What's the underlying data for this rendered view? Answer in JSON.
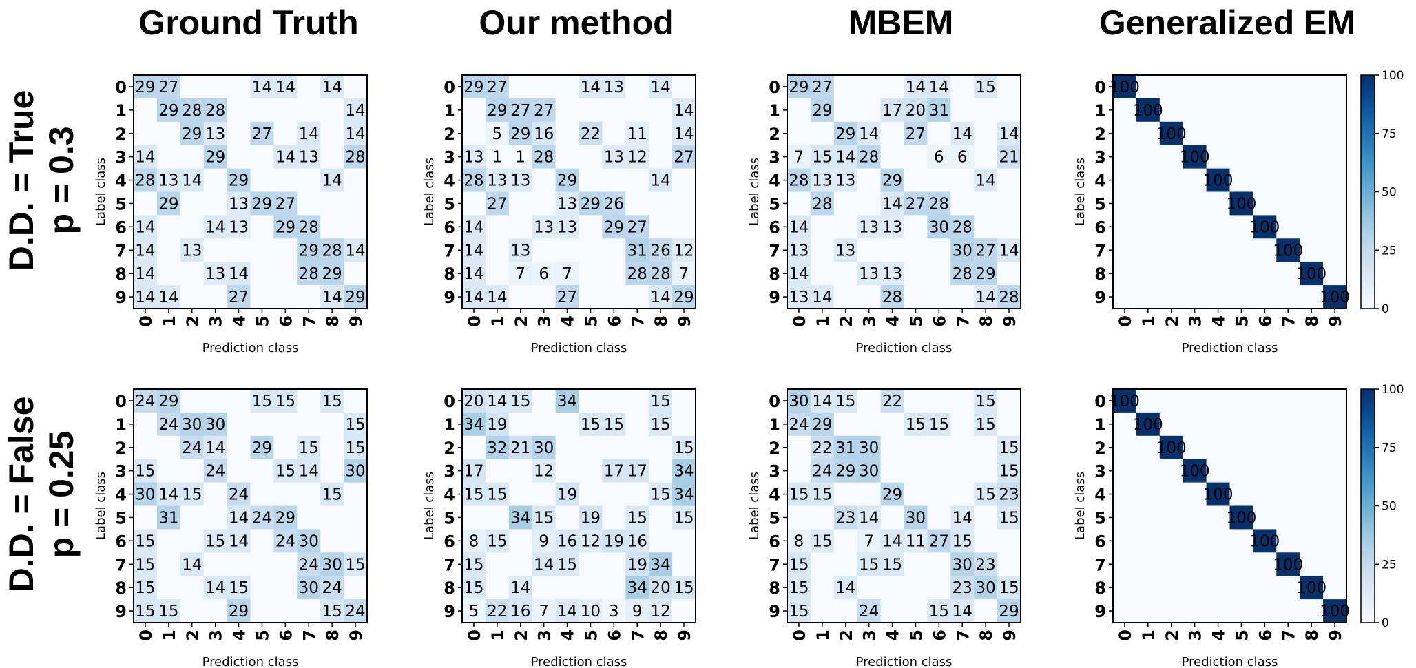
{
  "col_titles": [
    "Ground Truth",
    "Our method",
    "MBEM",
    "Generalized EM"
  ],
  "row_titles": [
    [
      "D.D. = True",
      "p = 0.3"
    ],
    [
      "D.D. = False",
      "p = 0.25"
    ]
  ],
  "colorbar": {
    "ticks": [
      0,
      25,
      50,
      75,
      100
    ],
    "range": [
      0,
      100
    ],
    "colormap": "Blues"
  },
  "chart_data": [
    {
      "type": "heatmap",
      "row": 0,
      "col": 0,
      "title": "",
      "xlabel": "Prediction class",
      "ylabel": "Label class",
      "x": [
        "0",
        "1",
        "2",
        "3",
        "4",
        "5",
        "6",
        "7",
        "8",
        "9"
      ],
      "y": [
        "0",
        "1",
        "2",
        "3",
        "4",
        "5",
        "6",
        "7",
        "8",
        "9"
      ],
      "values": [
        [
          29,
          27,
          0,
          0,
          0,
          14,
          14,
          0,
          14,
          0
        ],
        [
          0,
          29,
          28,
          28,
          0,
          0,
          0,
          0,
          0,
          14
        ],
        [
          0,
          0,
          29,
          13,
          0,
          27,
          0,
          14,
          0,
          14
        ],
        [
          14,
          0,
          0,
          29,
          0,
          0,
          14,
          13,
          0,
          28
        ],
        [
          28,
          13,
          14,
          0,
          29,
          0,
          0,
          0,
          14,
          0
        ],
        [
          0,
          29,
          0,
          0,
          13,
          29,
          27,
          0,
          0,
          0
        ],
        [
          14,
          0,
          0,
          14,
          13,
          0,
          29,
          28,
          0,
          0
        ],
        [
          14,
          0,
          13,
          0,
          0,
          0,
          0,
          29,
          28,
          14
        ],
        [
          14,
          0,
          0,
          13,
          14,
          0,
          0,
          28,
          29,
          0
        ],
        [
          14,
          14,
          0,
          0,
          27,
          0,
          0,
          0,
          14,
          29
        ]
      ]
    },
    {
      "type": "heatmap",
      "row": 0,
      "col": 1,
      "title": "",
      "xlabel": "Prediction class",
      "ylabel": "Label class",
      "x": [
        "0",
        "1",
        "2",
        "3",
        "4",
        "5",
        "6",
        "7",
        "8",
        "9"
      ],
      "y": [
        "0",
        "1",
        "2",
        "3",
        "4",
        "5",
        "6",
        "7",
        "8",
        "9"
      ],
      "values": [
        [
          29,
          27,
          0,
          0,
          0,
          14,
          13,
          0,
          14,
          0
        ],
        [
          0,
          29,
          27,
          27,
          0,
          0,
          0,
          0,
          0,
          14
        ],
        [
          0,
          5,
          29,
          16,
          0,
          22,
          0,
          11,
          0,
          14
        ],
        [
          13,
          1,
          1,
          28,
          0,
          0,
          13,
          12,
          0,
          27
        ],
        [
          28,
          13,
          13,
          0,
          29,
          0,
          0,
          0,
          14,
          0
        ],
        [
          0,
          27,
          0,
          0,
          13,
          29,
          26,
          0,
          0,
          0
        ],
        [
          14,
          0,
          0,
          13,
          13,
          0,
          29,
          27,
          0,
          0
        ],
        [
          14,
          0,
          13,
          0,
          0,
          0,
          0,
          31,
          26,
          12
        ],
        [
          14,
          0,
          7,
          6,
          7,
          0,
          0,
          28,
          28,
          7
        ],
        [
          14,
          14,
          0,
          0,
          27,
          0,
          0,
          0,
          14,
          29
        ]
      ]
    },
    {
      "type": "heatmap",
      "row": 0,
      "col": 2,
      "title": "",
      "xlabel": "Prediction class",
      "ylabel": "Label class",
      "x": [
        "0",
        "1",
        "2",
        "3",
        "4",
        "5",
        "6",
        "7",
        "8",
        "9"
      ],
      "y": [
        "0",
        "1",
        "2",
        "3",
        "4",
        "5",
        "6",
        "7",
        "8",
        "9"
      ],
      "values": [
        [
          29,
          27,
          0,
          0,
          0,
          14,
          14,
          0,
          15,
          0
        ],
        [
          0,
          29,
          0,
          0,
          17,
          20,
          31,
          0,
          0,
          0
        ],
        [
          0,
          0,
          29,
          14,
          0,
          27,
          0,
          14,
          0,
          14
        ],
        [
          7,
          15,
          14,
          28,
          0,
          0,
          6,
          6,
          0,
          21
        ],
        [
          28,
          13,
          13,
          0,
          29,
          0,
          0,
          0,
          14,
          0
        ],
        [
          0,
          28,
          0,
          0,
          14,
          27,
          28,
          0,
          0,
          0
        ],
        [
          14,
          0,
          0,
          13,
          13,
          0,
          30,
          28,
          0,
          0
        ],
        [
          13,
          0,
          13,
          0,
          0,
          0,
          0,
          30,
          27,
          14
        ],
        [
          14,
          0,
          0,
          13,
          13,
          0,
          0,
          28,
          29,
          0
        ],
        [
          13,
          14,
          0,
          0,
          28,
          0,
          0,
          0,
          14,
          28
        ]
      ]
    },
    {
      "type": "heatmap",
      "row": 0,
      "col": 3,
      "title": "",
      "xlabel": "Prediction class",
      "ylabel": "Label class",
      "x": [
        "0",
        "1",
        "2",
        "3",
        "4",
        "5",
        "6",
        "7",
        "8",
        "9"
      ],
      "y": [
        "0",
        "1",
        "2",
        "3",
        "4",
        "5",
        "6",
        "7",
        "8",
        "9"
      ],
      "values": [
        [
          100,
          0,
          0,
          0,
          0,
          0,
          0,
          0,
          0,
          0
        ],
        [
          0,
          100,
          0,
          0,
          0,
          0,
          0,
          0,
          0,
          0
        ],
        [
          0,
          0,
          100,
          0,
          0,
          0,
          0,
          0,
          0,
          0
        ],
        [
          0,
          0,
          0,
          100,
          0,
          0,
          0,
          0,
          0,
          0
        ],
        [
          0,
          0,
          0,
          0,
          100,
          0,
          0,
          0,
          0,
          0
        ],
        [
          0,
          0,
          0,
          0,
          0,
          100,
          0,
          0,
          0,
          0
        ],
        [
          0,
          0,
          0,
          0,
          0,
          0,
          100,
          0,
          0,
          0
        ],
        [
          0,
          0,
          0,
          0,
          0,
          0,
          0,
          100,
          0,
          0
        ],
        [
          0,
          0,
          0,
          0,
          0,
          0,
          0,
          0,
          100,
          0
        ],
        [
          0,
          0,
          0,
          0,
          0,
          0,
          0,
          0,
          0,
          100
        ]
      ]
    },
    {
      "type": "heatmap",
      "row": 1,
      "col": 0,
      "title": "",
      "xlabel": "Prediction class",
      "ylabel": "Label class",
      "x": [
        "0",
        "1",
        "2",
        "3",
        "4",
        "5",
        "6",
        "7",
        "8",
        "9"
      ],
      "y": [
        "0",
        "1",
        "2",
        "3",
        "4",
        "5",
        "6",
        "7",
        "8",
        "9"
      ],
      "values": [
        [
          24,
          29,
          0,
          0,
          0,
          15,
          15,
          0,
          15,
          0
        ],
        [
          0,
          24,
          30,
          30,
          0,
          0,
          0,
          0,
          0,
          15
        ],
        [
          0,
          0,
          24,
          14,
          0,
          29,
          0,
          15,
          0,
          15
        ],
        [
          15,
          0,
          0,
          24,
          0,
          0,
          15,
          14,
          0,
          30
        ],
        [
          30,
          14,
          15,
          0,
          24,
          0,
          0,
          0,
          15,
          0
        ],
        [
          0,
          31,
          0,
          0,
          14,
          24,
          29,
          0,
          0,
          0
        ],
        [
          15,
          0,
          0,
          15,
          14,
          0,
          24,
          30,
          0,
          0
        ],
        [
          15,
          0,
          14,
          0,
          0,
          0,
          0,
          24,
          30,
          15
        ],
        [
          15,
          0,
          0,
          14,
          15,
          0,
          0,
          30,
          24,
          0
        ],
        [
          15,
          15,
          0,
          0,
          29,
          0,
          0,
          0,
          15,
          24
        ]
      ]
    },
    {
      "type": "heatmap",
      "row": 1,
      "col": 1,
      "title": "",
      "xlabel": "Prediction class",
      "ylabel": "Label class",
      "x": [
        "0",
        "1",
        "2",
        "3",
        "4",
        "5",
        "6",
        "7",
        "8",
        "9"
      ],
      "y": [
        "0",
        "1",
        "2",
        "3",
        "4",
        "5",
        "6",
        "7",
        "8",
        "9"
      ],
      "values": [
        [
          20,
          14,
          15,
          0,
          34,
          0,
          0,
          0,
          15,
          0
        ],
        [
          34,
          19,
          0,
          0,
          0,
          15,
          15,
          0,
          15,
          0
        ],
        [
          0,
          32,
          21,
          30,
          0,
          0,
          0,
          0,
          0,
          15
        ],
        [
          17,
          0,
          0,
          12,
          0,
          0,
          17,
          17,
          0,
          34
        ],
        [
          15,
          15,
          0,
          0,
          19,
          0,
          0,
          0,
          15,
          34
        ],
        [
          0,
          0,
          34,
          15,
          0,
          19,
          0,
          15,
          0,
          15
        ],
        [
          8,
          15,
          0,
          9,
          16,
          12,
          19,
          16,
          0,
          0
        ],
        [
          15,
          0,
          0,
          14,
          15,
          0,
          0,
          19,
          34,
          0
        ],
        [
          15,
          0,
          14,
          0,
          0,
          0,
          0,
          34,
          20,
          15
        ],
        [
          5,
          22,
          16,
          7,
          14,
          10,
          3,
          9,
          12,
          0
        ]
      ]
    },
    {
      "type": "heatmap",
      "row": 1,
      "col": 2,
      "title": "",
      "xlabel": "Prediction class",
      "ylabel": "Label class",
      "x": [
        "0",
        "1",
        "2",
        "3",
        "4",
        "5",
        "6",
        "7",
        "8",
        "9"
      ],
      "y": [
        "0",
        "1",
        "2",
        "3",
        "4",
        "5",
        "6",
        "7",
        "8",
        "9"
      ],
      "values": [
        [
          30,
          14,
          15,
          0,
          22,
          0,
          0,
          0,
          15,
          0
        ],
        [
          24,
          29,
          0,
          0,
          0,
          15,
          15,
          0,
          15,
          0
        ],
        [
          0,
          22,
          31,
          30,
          0,
          0,
          0,
          0,
          0,
          15
        ],
        [
          0,
          24,
          29,
          30,
          0,
          0,
          0,
          0,
          0,
          15
        ],
        [
          15,
          15,
          0,
          0,
          29,
          0,
          0,
          0,
          15,
          23
        ],
        [
          0,
          0,
          23,
          14,
          0,
          30,
          0,
          14,
          0,
          15
        ],
        [
          8,
          15,
          0,
          7,
          14,
          11,
          27,
          15,
          0,
          0
        ],
        [
          15,
          0,
          0,
          15,
          15,
          0,
          0,
          30,
          23,
          0
        ],
        [
          15,
          0,
          14,
          0,
          0,
          0,
          0,
          23,
          30,
          15
        ],
        [
          15,
          0,
          0,
          24,
          0,
          0,
          15,
          14,
          0,
          29
        ]
      ]
    },
    {
      "type": "heatmap",
      "row": 1,
      "col": 3,
      "title": "",
      "xlabel": "Prediction class",
      "ylabel": "Label class",
      "x": [
        "0",
        "1",
        "2",
        "3",
        "4",
        "5",
        "6",
        "7",
        "8",
        "9"
      ],
      "y": [
        "0",
        "1",
        "2",
        "3",
        "4",
        "5",
        "6",
        "7",
        "8",
        "9"
      ],
      "values": [
        [
          100,
          0,
          0,
          0,
          0,
          0,
          0,
          0,
          0,
          0
        ],
        [
          0,
          100,
          0,
          0,
          0,
          0,
          0,
          0,
          0,
          0
        ],
        [
          0,
          0,
          100,
          0,
          0,
          0,
          0,
          0,
          0,
          0
        ],
        [
          0,
          0,
          0,
          100,
          0,
          0,
          0,
          0,
          0,
          0
        ],
        [
          0,
          0,
          0,
          0,
          100,
          0,
          0,
          0,
          0,
          0
        ],
        [
          0,
          0,
          0,
          0,
          0,
          100,
          0,
          0,
          0,
          0
        ],
        [
          0,
          0,
          0,
          0,
          0,
          0,
          100,
          0,
          0,
          0
        ],
        [
          0,
          0,
          0,
          0,
          0,
          0,
          0,
          100,
          0,
          0
        ],
        [
          0,
          0,
          0,
          0,
          0,
          0,
          0,
          0,
          100,
          0
        ],
        [
          0,
          0,
          0,
          0,
          0,
          0,
          0,
          0,
          0,
          100
        ]
      ]
    }
  ]
}
